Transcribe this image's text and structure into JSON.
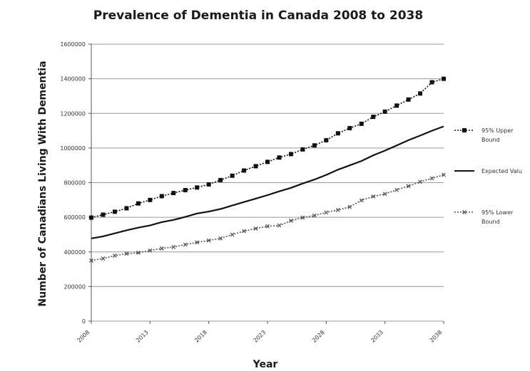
{
  "chart_data": {
    "type": "line",
    "title": "Prevalence of Dementia in Canada 2008 to 2038",
    "xlabel": "Year",
    "ylabel": "Number of Canadians  Living With Dementia",
    "x": [
      2008,
      2009,
      2010,
      2011,
      2012,
      2013,
      2014,
      2015,
      2016,
      2017,
      2018,
      2019,
      2020,
      2021,
      2022,
      2023,
      2024,
      2025,
      2026,
      2027,
      2028,
      2029,
      2030,
      2031,
      2032,
      2033,
      2034,
      2035,
      2036,
      2037,
      2038
    ],
    "x_tick_labels": [
      "2008",
      "2013",
      "2018",
      "2023",
      "2028",
      "2033",
      "2038"
    ],
    "y_tick_labels": [
      "0",
      "200000",
      "400000",
      "600000",
      "800000",
      "1000000",
      "1200000",
      "1400000",
      "1600000"
    ],
    "ylim": [
      0,
      1600000
    ],
    "grid": "horizontal",
    "legend_position": "right",
    "series": [
      {
        "name": "95% Upper Bound",
        "style": "dotted-square-markers",
        "color": "#111111",
        "values": [
          598000,
          615000,
          632000,
          652000,
          680000,
          700000,
          722000,
          740000,
          757000,
          772000,
          790000,
          815000,
          840000,
          870000,
          895000,
          920000,
          945000,
          965000,
          992000,
          1015000,
          1045000,
          1085000,
          1115000,
          1140000,
          1180000,
          1210000,
          1245000,
          1280000,
          1315000,
          1380000,
          1400000
        ]
      },
      {
        "name": "Expected Value",
        "style": "solid",
        "color": "#111111",
        "values": [
          478000,
          490000,
          507000,
          525000,
          540000,
          553000,
          572000,
          585000,
          602000,
          622000,
          633000,
          648000,
          668000,
          688000,
          708000,
          728000,
          750000,
          770000,
          795000,
          818000,
          845000,
          875000,
          900000,
          925000,
          958000,
          985000,
          1015000,
          1045000,
          1072000,
          1100000,
          1125000
        ]
      },
      {
        "name": "95% Lower Bound",
        "style": "dotted-x-markers",
        "color": "#555555",
        "values": [
          350000,
          362000,
          378000,
          390000,
          395000,
          408000,
          420000,
          428000,
          442000,
          455000,
          466000,
          478000,
          500000,
          520000,
          535000,
          548000,
          553000,
          580000,
          598000,
          610000,
          628000,
          642000,
          660000,
          698000,
          720000,
          735000,
          758000,
          780000,
          805000,
          825000,
          845000
        ]
      }
    ],
    "legend_labels": [
      {
        "line1": "95% Upper",
        "line2": "Bound"
      },
      {
        "line1": "Expected Valu",
        "line2": ""
      },
      {
        "line1": "95% Lower",
        "line2": "Bound"
      }
    ]
  }
}
